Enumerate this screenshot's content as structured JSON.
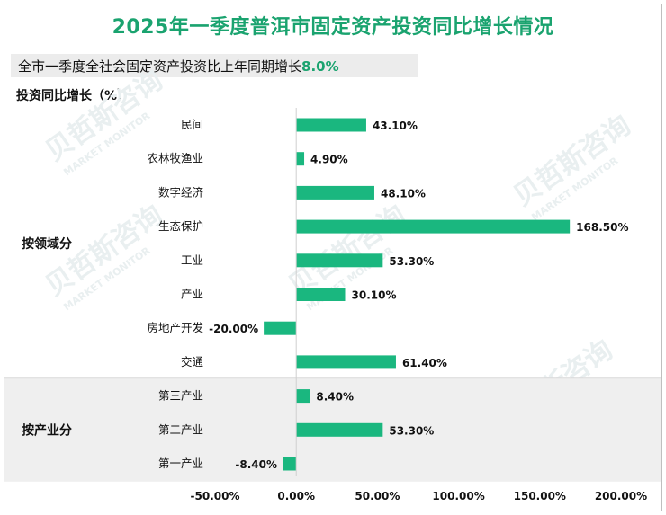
{
  "title": "2025年一季度普洱市固定资产投资同比增长情况",
  "subtitle": {
    "text": "全市一季度全社会固定资产投资比上年同期增长",
    "highlight": "8.0%"
  },
  "watermark": {
    "cn": "贝哲斯咨询",
    "en": "MARKET MONITOR"
  },
  "chart_data": {
    "type": "bar",
    "orientation": "horizontal",
    "ylabel": "投资同比增长（%）",
    "groups": [
      {
        "label": "按领域分",
        "categories": [
          "民间",
          "农林牧渔业",
          "数字经济",
          "生态保护",
          "工业",
          "产业",
          "房地产开发",
          "交通"
        ]
      },
      {
        "label": "按产业分",
        "categories": [
          "第三产业",
          "第二产业",
          "第一产业"
        ]
      }
    ],
    "categories": [
      "民间",
      "农林牧渔业",
      "数字经济",
      "生态保护",
      "工业",
      "产业",
      "房地产开发",
      "交通",
      "第三产业",
      "第二产业",
      "第一产业"
    ],
    "values": [
      43.1,
      4.9,
      48.1,
      168.5,
      53.3,
      30.1,
      -20.0,
      61.4,
      8.4,
      53.3,
      -8.4
    ],
    "value_labels": [
      "43.10%",
      "4.90%",
      "48.10%",
      "168.50%",
      "53.30%",
      "30.10%",
      "-20.00%",
      "61.40%",
      "8.40%",
      "53.30%",
      "-8.40%"
    ],
    "xlim": [
      -50,
      200
    ],
    "xticks": [
      -50,
      0,
      50,
      100,
      150,
      200
    ],
    "xtick_labels": [
      "-50.00%",
      "0.00%",
      "50.00%",
      "100.00%",
      "150.00%",
      "200.00%"
    ],
    "bar_color": "#1ab77f",
    "group_band_color": "#efefef",
    "grid": false
  }
}
